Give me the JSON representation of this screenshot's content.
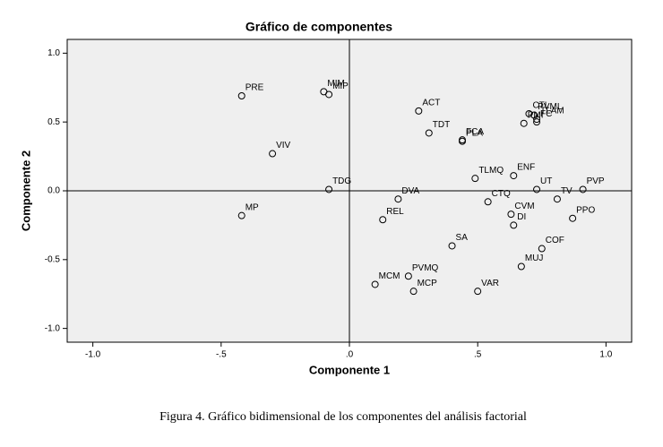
{
  "chart_data": {
    "type": "scatter",
    "title": "Gráfico de componentes",
    "x_label": "Componente 1",
    "y_label": "Componente 2",
    "caption": "Figura 4. Gráfico bidimensional de los componentes del análisis factorial",
    "point_labels": [
      "PRE",
      "MIM",
      "MIP",
      "ACT",
      "CTL",
      "PVML",
      "PMI",
      "TLAM",
      "FC",
      "TDT",
      "FCA",
      "PLA",
      "VIV",
      "TLMQ",
      "ENF",
      "UT",
      "PVP",
      "TDG",
      "DVA",
      "CTQ",
      "TV",
      "MP",
      "REL",
      "CVM",
      "DI",
      "PPO",
      "SA",
      "COF",
      "MUJ",
      "PVMQ",
      "MCM",
      "MCP",
      "VAR"
    ],
    "x": [
      -0.42,
      -0.1,
      -0.08,
      0.27,
      0.7,
      0.72,
      0.68,
      0.73,
      0.73,
      0.31,
      0.44,
      0.44,
      -0.3,
      0.49,
      0.64,
      0.73,
      0.91,
      -0.08,
      0.19,
      0.54,
      0.81,
      -0.42,
      0.13,
      0.63,
      0.64,
      0.87,
      0.4,
      0.75,
      0.67,
      0.23,
      0.1,
      0.25,
      0.5
    ],
    "values": [
      0.69,
      0.72,
      0.7,
      0.58,
      0.56,
      0.55,
      0.49,
      0.52,
      0.5,
      0.42,
      0.37,
      0.36,
      0.27,
      0.09,
      0.11,
      0.01,
      0.01,
      0.01,
      -0.06,
      -0.08,
      -0.06,
      -0.18,
      -0.21,
      -0.17,
      -0.25,
      -0.2,
      -0.4,
      -0.42,
      -0.55,
      -0.62,
      -0.68,
      -0.73,
      -0.73
    ],
    "xlim": [
      -1.1,
      1.1
    ],
    "ylim": [
      -1.1,
      1.1
    ],
    "xticks": [
      {
        "value": -1.0,
        "label": "-1.0"
      },
      {
        "value": -0.5,
        "label": "-.5"
      },
      {
        "value": 0,
        "label": ".0"
      },
      {
        "value": 0.5,
        "label": ".5"
      },
      {
        "value": 1.0,
        "label": "1.0"
      }
    ],
    "yticks": [
      {
        "value": 1.0,
        "label": "1.0"
      },
      {
        "value": 0.5,
        "label": "0.5"
      },
      {
        "value": 0,
        "label": "0.0"
      },
      {
        "value": -0.5,
        "label": "-0.5"
      },
      {
        "value": -1.0,
        "label": "-1.0"
      }
    ],
    "color": "#000000",
    "background": "#efefef"
  }
}
